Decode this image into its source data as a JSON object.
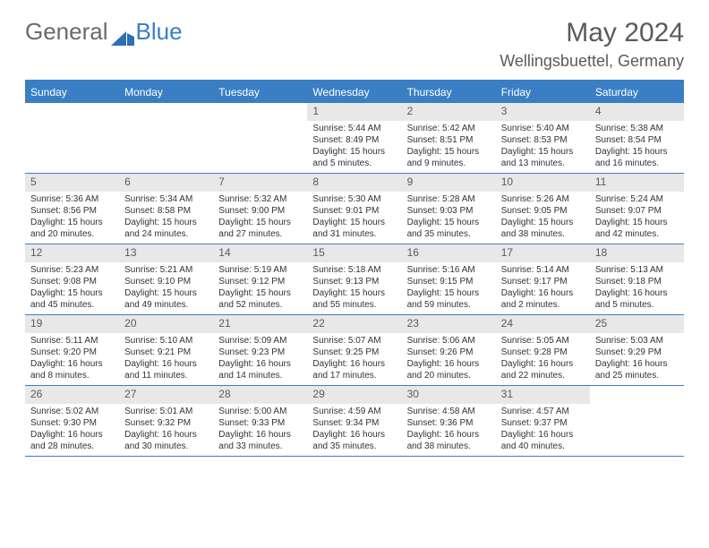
{
  "logo": {
    "text1": "General",
    "text2": "Blue"
  },
  "header": {
    "title": "May 2024",
    "location": "Wellingsbuettel, Germany"
  },
  "colors": {
    "accent": "#3a7fc4",
    "daynum_bg": "#e8e8e8",
    "text": "#333333",
    "header_text": "#5a5a5a",
    "background": "#ffffff"
  },
  "weekdays": [
    "Sunday",
    "Monday",
    "Tuesday",
    "Wednesday",
    "Thursday",
    "Friday",
    "Saturday"
  ],
  "weeks": [
    [
      {
        "num": "",
        "sunrise": "",
        "sunset": "",
        "daylight": ""
      },
      {
        "num": "",
        "sunrise": "",
        "sunset": "",
        "daylight": ""
      },
      {
        "num": "",
        "sunrise": "",
        "sunset": "",
        "daylight": ""
      },
      {
        "num": "1",
        "sunrise": "Sunrise: 5:44 AM",
        "sunset": "Sunset: 8:49 PM",
        "daylight": "Daylight: 15 hours and 5 minutes."
      },
      {
        "num": "2",
        "sunrise": "Sunrise: 5:42 AM",
        "sunset": "Sunset: 8:51 PM",
        "daylight": "Daylight: 15 hours and 9 minutes."
      },
      {
        "num": "3",
        "sunrise": "Sunrise: 5:40 AM",
        "sunset": "Sunset: 8:53 PM",
        "daylight": "Daylight: 15 hours and 13 minutes."
      },
      {
        "num": "4",
        "sunrise": "Sunrise: 5:38 AM",
        "sunset": "Sunset: 8:54 PM",
        "daylight": "Daylight: 15 hours and 16 minutes."
      }
    ],
    [
      {
        "num": "5",
        "sunrise": "Sunrise: 5:36 AM",
        "sunset": "Sunset: 8:56 PM",
        "daylight": "Daylight: 15 hours and 20 minutes."
      },
      {
        "num": "6",
        "sunrise": "Sunrise: 5:34 AM",
        "sunset": "Sunset: 8:58 PM",
        "daylight": "Daylight: 15 hours and 24 minutes."
      },
      {
        "num": "7",
        "sunrise": "Sunrise: 5:32 AM",
        "sunset": "Sunset: 9:00 PM",
        "daylight": "Daylight: 15 hours and 27 minutes."
      },
      {
        "num": "8",
        "sunrise": "Sunrise: 5:30 AM",
        "sunset": "Sunset: 9:01 PM",
        "daylight": "Daylight: 15 hours and 31 minutes."
      },
      {
        "num": "9",
        "sunrise": "Sunrise: 5:28 AM",
        "sunset": "Sunset: 9:03 PM",
        "daylight": "Daylight: 15 hours and 35 minutes."
      },
      {
        "num": "10",
        "sunrise": "Sunrise: 5:26 AM",
        "sunset": "Sunset: 9:05 PM",
        "daylight": "Daylight: 15 hours and 38 minutes."
      },
      {
        "num": "11",
        "sunrise": "Sunrise: 5:24 AM",
        "sunset": "Sunset: 9:07 PM",
        "daylight": "Daylight: 15 hours and 42 minutes."
      }
    ],
    [
      {
        "num": "12",
        "sunrise": "Sunrise: 5:23 AM",
        "sunset": "Sunset: 9:08 PM",
        "daylight": "Daylight: 15 hours and 45 minutes."
      },
      {
        "num": "13",
        "sunrise": "Sunrise: 5:21 AM",
        "sunset": "Sunset: 9:10 PM",
        "daylight": "Daylight: 15 hours and 49 minutes."
      },
      {
        "num": "14",
        "sunrise": "Sunrise: 5:19 AM",
        "sunset": "Sunset: 9:12 PM",
        "daylight": "Daylight: 15 hours and 52 minutes."
      },
      {
        "num": "15",
        "sunrise": "Sunrise: 5:18 AM",
        "sunset": "Sunset: 9:13 PM",
        "daylight": "Daylight: 15 hours and 55 minutes."
      },
      {
        "num": "16",
        "sunrise": "Sunrise: 5:16 AM",
        "sunset": "Sunset: 9:15 PM",
        "daylight": "Daylight: 15 hours and 59 minutes."
      },
      {
        "num": "17",
        "sunrise": "Sunrise: 5:14 AM",
        "sunset": "Sunset: 9:17 PM",
        "daylight": "Daylight: 16 hours and 2 minutes."
      },
      {
        "num": "18",
        "sunrise": "Sunrise: 5:13 AM",
        "sunset": "Sunset: 9:18 PM",
        "daylight": "Daylight: 16 hours and 5 minutes."
      }
    ],
    [
      {
        "num": "19",
        "sunrise": "Sunrise: 5:11 AM",
        "sunset": "Sunset: 9:20 PM",
        "daylight": "Daylight: 16 hours and 8 minutes."
      },
      {
        "num": "20",
        "sunrise": "Sunrise: 5:10 AM",
        "sunset": "Sunset: 9:21 PM",
        "daylight": "Daylight: 16 hours and 11 minutes."
      },
      {
        "num": "21",
        "sunrise": "Sunrise: 5:09 AM",
        "sunset": "Sunset: 9:23 PM",
        "daylight": "Daylight: 16 hours and 14 minutes."
      },
      {
        "num": "22",
        "sunrise": "Sunrise: 5:07 AM",
        "sunset": "Sunset: 9:25 PM",
        "daylight": "Daylight: 16 hours and 17 minutes."
      },
      {
        "num": "23",
        "sunrise": "Sunrise: 5:06 AM",
        "sunset": "Sunset: 9:26 PM",
        "daylight": "Daylight: 16 hours and 20 minutes."
      },
      {
        "num": "24",
        "sunrise": "Sunrise: 5:05 AM",
        "sunset": "Sunset: 9:28 PM",
        "daylight": "Daylight: 16 hours and 22 minutes."
      },
      {
        "num": "25",
        "sunrise": "Sunrise: 5:03 AM",
        "sunset": "Sunset: 9:29 PM",
        "daylight": "Daylight: 16 hours and 25 minutes."
      }
    ],
    [
      {
        "num": "26",
        "sunrise": "Sunrise: 5:02 AM",
        "sunset": "Sunset: 9:30 PM",
        "daylight": "Daylight: 16 hours and 28 minutes."
      },
      {
        "num": "27",
        "sunrise": "Sunrise: 5:01 AM",
        "sunset": "Sunset: 9:32 PM",
        "daylight": "Daylight: 16 hours and 30 minutes."
      },
      {
        "num": "28",
        "sunrise": "Sunrise: 5:00 AM",
        "sunset": "Sunset: 9:33 PM",
        "daylight": "Daylight: 16 hours and 33 minutes."
      },
      {
        "num": "29",
        "sunrise": "Sunrise: 4:59 AM",
        "sunset": "Sunset: 9:34 PM",
        "daylight": "Daylight: 16 hours and 35 minutes."
      },
      {
        "num": "30",
        "sunrise": "Sunrise: 4:58 AM",
        "sunset": "Sunset: 9:36 PM",
        "daylight": "Daylight: 16 hours and 38 minutes."
      },
      {
        "num": "31",
        "sunrise": "Sunrise: 4:57 AM",
        "sunset": "Sunset: 9:37 PM",
        "daylight": "Daylight: 16 hours and 40 minutes."
      },
      {
        "num": "",
        "sunrise": "",
        "sunset": "",
        "daylight": ""
      }
    ]
  ]
}
